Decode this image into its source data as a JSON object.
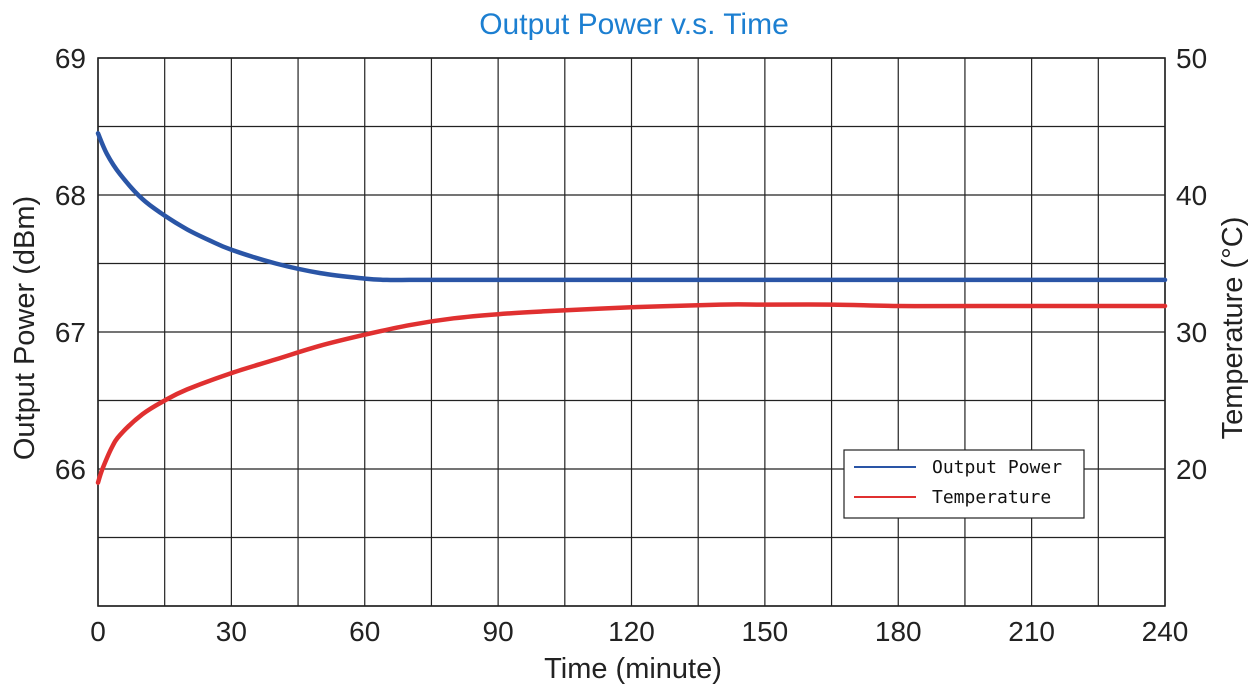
{
  "chart_data": {
    "type": "line",
    "title": "Output Power v.s. Time",
    "xlabel": "Time (minute)",
    "ylabel": "Output Power (dBm)",
    "y2label": "Temperature (°C)",
    "xlim": [
      0,
      240
    ],
    "ylim": [
      65,
      69
    ],
    "y2lim": [
      10,
      50
    ],
    "x_ticks": [
      "0",
      "30",
      "60",
      "90",
      "120",
      "150",
      "180",
      "210",
      "240"
    ],
    "y_ticks": [
      "66",
      "67",
      "68",
      "69"
    ],
    "y2_ticks": [
      "20",
      "30",
      "40",
      "50"
    ],
    "grid": true,
    "legend_position": "lower-right",
    "series": [
      {
        "name": "Output Power",
        "axis": "left",
        "color": "#2a55a6",
        "x": [
          0,
          2,
          5,
          10,
          15,
          20,
          25,
          30,
          40,
          50,
          60,
          65,
          70,
          75,
          90,
          120,
          150,
          180,
          210,
          240
        ],
        "y": [
          68.45,
          68.3,
          68.15,
          67.97,
          67.85,
          67.75,
          67.67,
          67.6,
          67.5,
          67.43,
          67.39,
          67.38,
          67.38,
          67.38,
          67.38,
          67.38,
          67.38,
          67.38,
          67.38,
          67.38
        ]
      },
      {
        "name": "Temperature",
        "axis": "right",
        "color": "#e03030",
        "x": [
          0,
          1,
          3,
          5,
          10,
          15,
          20,
          30,
          40,
          50,
          60,
          70,
          80,
          90,
          100,
          120,
          140,
          150,
          165,
          180,
          200,
          240
        ],
        "y": [
          19.0,
          20.0,
          21.5,
          22.5,
          24.0,
          25.0,
          25.8,
          27.0,
          28.0,
          29.0,
          29.8,
          30.5,
          31.0,
          31.3,
          31.5,
          31.8,
          32.0,
          32.0,
          32.0,
          31.9,
          31.9,
          31.9
        ]
      }
    ]
  }
}
